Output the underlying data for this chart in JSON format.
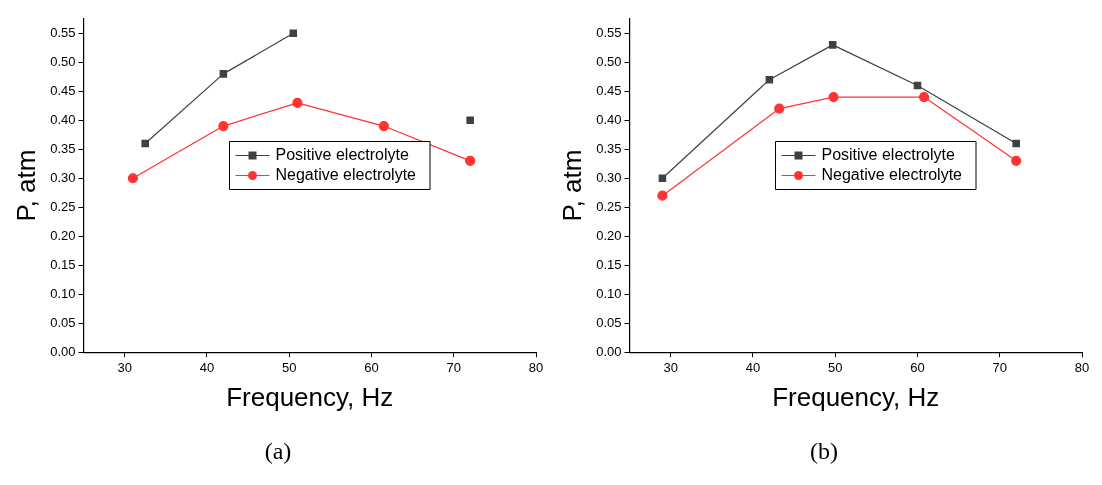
{
  "chart_data": [
    {
      "type": "line",
      "xlabel": "Frequency, Hz",
      "ylabel": "P, atm",
      "xlim": [
        25,
        80
      ],
      "xticks": [
        30,
        40,
        50,
        60,
        70,
        80
      ],
      "ylim": [
        0,
        0.575
      ],
      "yticks": [
        {
          "value": 0,
          "label": "0.00"
        },
        {
          "value": 0.05,
          "label": "0.05"
        },
        {
          "value": 0.1,
          "label": "0.10"
        },
        {
          "value": 0.15,
          "label": "0.15"
        },
        {
          "value": 0.2,
          "label": "0.20"
        },
        {
          "value": 0.25,
          "label": "0.25"
        },
        {
          "value": 0.3,
          "label": "0.30"
        },
        {
          "value": 0.35,
          "label": "0.35"
        },
        {
          "value": 0.4,
          "label": "0.40"
        },
        {
          "value": 0.45,
          "label": "0.45"
        },
        {
          "value": 0.5,
          "label": "0.50"
        },
        {
          "value": 0.55,
          "label": "0.55"
        }
      ],
      "grid": false,
      "legend": "center",
      "annotations": [
        "(a)"
      ],
      "series": [
        {
          "name": "Positive electrolyte",
          "color": "#404040",
          "marker": "square",
          "x": [
            32.5,
            42,
            50.5,
            61.5,
            72
          ],
          "values": [
            0.36,
            0.48,
            0.55,
            null,
            0.4
          ]
        },
        {
          "name": "Negative electrolyte",
          "color": "#ff3333",
          "marker": "circle",
          "x": [
            31,
            42,
            51,
            61.5,
            72
          ],
          "values": [
            0.3,
            0.39,
            0.43,
            0.39,
            0.33
          ]
        }
      ]
    },
    {
      "type": "line",
      "xlabel": "Frequency, Hz",
      "ylabel": "P, atm",
      "xlim": [
        25,
        80
      ],
      "xticks": [
        30,
        40,
        50,
        60,
        70,
        80
      ],
      "ylim": [
        0,
        0.575
      ],
      "yticks": [
        {
          "value": 0,
          "label": "0.00"
        },
        {
          "value": 0.05,
          "label": "0.05"
        },
        {
          "value": 0.1,
          "label": "0.10"
        },
        {
          "value": 0.15,
          "label": "0.15"
        },
        {
          "value": 0.2,
          "label": "0.20"
        },
        {
          "value": 0.25,
          "label": "0.25"
        },
        {
          "value": 0.3,
          "label": "0.30"
        },
        {
          "value": 0.35,
          "label": "0.35"
        },
        {
          "value": 0.4,
          "label": "0.40"
        },
        {
          "value": 0.45,
          "label": "0.45"
        },
        {
          "value": 0.5,
          "label": "0.50"
        },
        {
          "value": 0.55,
          "label": "0.55"
        }
      ],
      "grid": false,
      "legend": "center",
      "annotations": [
        "(b)"
      ],
      "series": [
        {
          "name": "Positive electrolyte",
          "color": "#404040",
          "marker": "square",
          "x": [
            29,
            42,
            49.7,
            60,
            72
          ],
          "values": [
            0.3,
            0.47,
            0.53,
            0.46,
            0.36
          ]
        },
        {
          "name": "Negative electrolyte",
          "color": "#ff3333",
          "marker": "circle",
          "x": [
            29,
            43.2,
            49.8,
            60.8,
            72
          ],
          "values": [
            0.27,
            0.42,
            0.44,
            0.44,
            0.33
          ]
        }
      ]
    }
  ]
}
